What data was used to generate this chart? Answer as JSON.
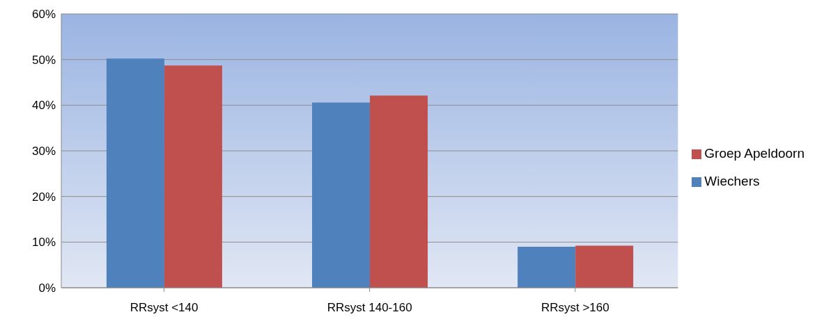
{
  "chart_data": {
    "type": "bar",
    "categories": [
      "RRsyst <140",
      "RRsyst 140-160",
      "RRsyst >160"
    ],
    "series": [
      {
        "name": "Wiechers",
        "color": "#4f81bd",
        "values": [
          50.2,
          40.6,
          9.0
        ]
      },
      {
        "name": "Groep Apeldoorn",
        "color": "#c0504d",
        "values": [
          48.7,
          42.1,
          9.2
        ]
      }
    ],
    "ylim": [
      0,
      60
    ],
    "yticks": [
      {
        "value": 0,
        "label": "0%"
      },
      {
        "value": 10,
        "label": "10%"
      },
      {
        "value": 20,
        "label": "20%"
      },
      {
        "value": 30,
        "label": "30%"
      },
      {
        "value": 40,
        "label": "40%"
      },
      {
        "value": 50,
        "label": "50%"
      },
      {
        "value": 60,
        "label": "60%"
      }
    ],
    "grid": "y",
    "legend": "right"
  }
}
